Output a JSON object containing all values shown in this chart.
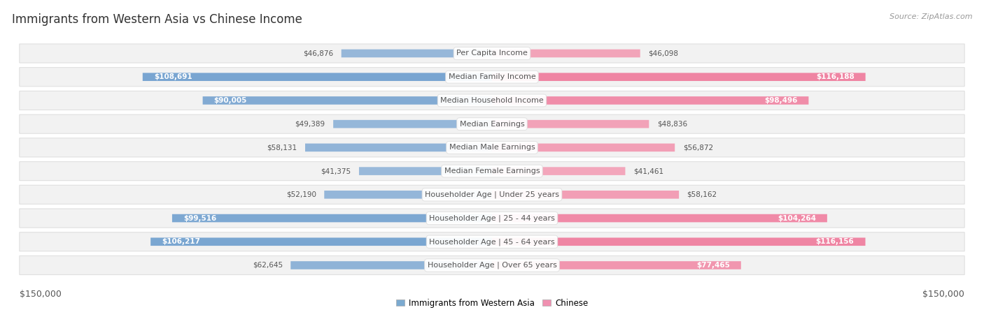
{
  "title": "Immigrants from Western Asia vs Chinese Income",
  "source": "Source: ZipAtlas.com",
  "categories": [
    "Per Capita Income",
    "Median Family Income",
    "Median Household Income",
    "Median Earnings",
    "Median Male Earnings",
    "Median Female Earnings",
    "Householder Age | Under 25 years",
    "Householder Age | 25 - 44 years",
    "Householder Age | 45 - 64 years",
    "Householder Age | Over 65 years"
  ],
  "western_asia_values": [
    46876,
    108691,
    90005,
    49389,
    58131,
    41375,
    52190,
    99516,
    106217,
    62645
  ],
  "chinese_values": [
    46098,
    116188,
    98496,
    48836,
    56872,
    41461,
    58162,
    104264,
    116156,
    77465
  ],
  "western_asia_labels": [
    "$46,876",
    "$108,691",
    "$90,005",
    "$49,389",
    "$58,131",
    "$41,375",
    "$52,190",
    "$99,516",
    "$106,217",
    "$62,645"
  ],
  "chinese_labels": [
    "$46,098",
    "$116,188",
    "$98,496",
    "$48,836",
    "$56,872",
    "$41,461",
    "$58,162",
    "$104,264",
    "$116,156",
    "$77,465"
  ],
  "max_value": 150000,
  "blue_light": "#adc6e0",
  "blue_dark": "#6699cc",
  "pink_light": "#f5b8c8",
  "pink_dark": "#ee7799",
  "row_bg": "#f2f2f2",
  "row_border": "#e0e0e0",
  "title_color": "#333333",
  "source_color": "#999999",
  "outside_label_color": "#555555",
  "inside_label_color": "#ffffff",
  "cat_label_color": "#555555",
  "legend_blue": "#7baad0",
  "legend_pink": "#f090b0",
  "threshold_inside": 70000,
  "title_fontsize": 12,
  "source_fontsize": 8,
  "category_fontsize": 8,
  "value_fontsize": 7.5,
  "axis_fontsize": 9,
  "legend_fontsize": 8.5
}
